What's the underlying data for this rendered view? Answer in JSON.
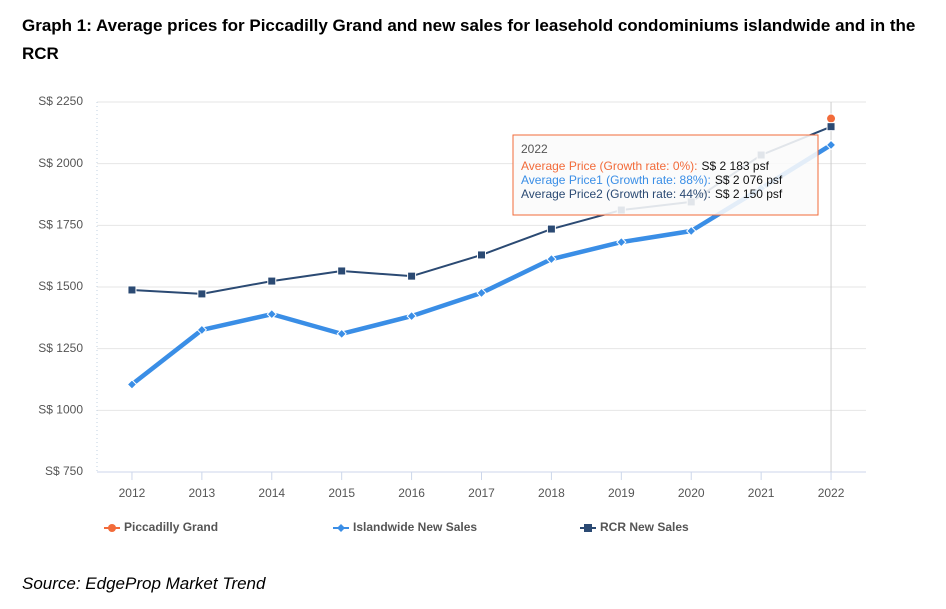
{
  "chart_data": {
    "type": "line",
    "title": "Graph 1: Average prices for Piccadilly Grand and new sales for leasehold condominiums islandwide and in the RCR",
    "source": "Source: EdgeProp Market Trend",
    "x": [
      2012,
      2013,
      2014,
      2015,
      2016,
      2017,
      2018,
      2019,
      2020,
      2021,
      2022
    ],
    "xlim": [
      2011.5,
      2022.5
    ],
    "xticks": [
      2012,
      2013,
      2014,
      2015,
      2016,
      2017,
      2018,
      2019,
      2020,
      2021,
      2022
    ],
    "ylim": [
      750,
      2250
    ],
    "yticks": [
      {
        "value": 750,
        "label": "S$ 750"
      },
      {
        "value": 1000,
        "label": "S$ 1000"
      },
      {
        "value": 1250,
        "label": "S$ 1250"
      },
      {
        "value": 1500,
        "label": "S$ 1500"
      },
      {
        "value": 1750,
        "label": "S$ 1750"
      },
      {
        "value": 2000,
        "label": "S$ 2000"
      },
      {
        "value": 2250,
        "label": "S$ 2250"
      }
    ],
    "grid": true,
    "series": [
      {
        "name": "Piccadilly Grand",
        "color": "#f26b3a",
        "marker": "circle",
        "values": [
          null,
          null,
          null,
          null,
          null,
          null,
          null,
          null,
          null,
          null,
          2183
        ]
      },
      {
        "name": "Islandwide New Sales",
        "color": "#3a8ee6",
        "marker": "diamond",
        "values": [
          1105,
          1326,
          1390,
          1310,
          1382,
          1476,
          1613,
          1682,
          1727,
          1900,
          2076
        ]
      },
      {
        "name": "RCR New Sales",
        "color": "#2b4a73",
        "marker": "square",
        "values": [
          1488,
          1472,
          1524,
          1565,
          1544,
          1630,
          1735,
          1812,
          1845,
          2035,
          2150
        ]
      }
    ],
    "tooltip": {
      "title": "2022",
      "rows": [
        {
          "label": "Average Price (Growth rate: 0%):",
          "value": "S$ 2 183 psf",
          "color": "#f26b3a"
        },
        {
          "label": "Average Price1 (Growth rate: 88%):",
          "value": "S$ 2 076 psf",
          "color": "#3a8ee6"
        },
        {
          "label": "Average Price2 (Growth rate: 44%):",
          "value": "S$ 2 150 psf",
          "color": "#2b4a73"
        }
      ]
    }
  }
}
